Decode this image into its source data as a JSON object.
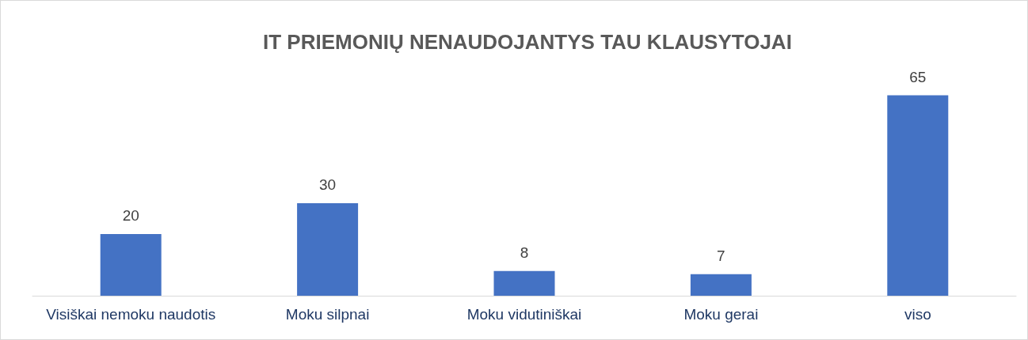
{
  "chart_data": {
    "type": "bar",
    "title": "IT PRIEMONIŲ NENAUDOJANTYS TAU KLAUSYTOJAI",
    "categories": [
      "Visiškai nemoku naudotis",
      "Moku silpnai",
      "Moku vidutiniškai",
      "Moku gerai",
      "viso"
    ],
    "values": [
      20,
      30,
      8,
      7,
      65
    ],
    "color": "#4472c4",
    "data_labels": true
  }
}
